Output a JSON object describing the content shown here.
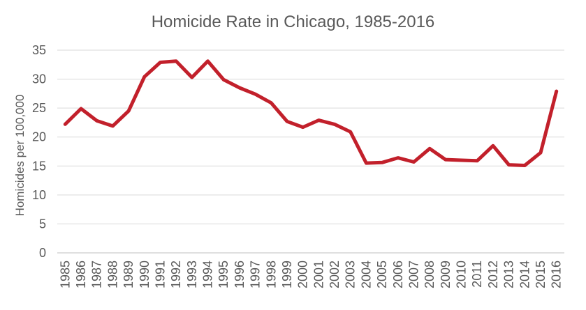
{
  "chart_data": {
    "type": "line",
    "title": "Homicide Rate in Chicago, 1985-2016",
    "ylabel": "Homicides per 100,000",
    "xlabel": "",
    "categories": [
      1985,
      1986,
      1987,
      1988,
      1989,
      1990,
      1991,
      1992,
      1993,
      1994,
      1995,
      1996,
      1997,
      1998,
      1999,
      2000,
      2001,
      2002,
      2003,
      2004,
      2005,
      2006,
      2007,
      2008,
      2009,
      2010,
      2011,
      2012,
      2013,
      2014,
      2015,
      2016
    ],
    "series": [
      {
        "name": "Homicides per 100,000",
        "values": [
          22.2,
          24.9,
          22.8,
          21.9,
          24.5,
          30.4,
          32.9,
          33.1,
          30.3,
          33.1,
          29.9,
          28.5,
          27.4,
          25.9,
          22.7,
          21.7,
          22.9,
          22.2,
          20.9,
          15.5,
          15.6,
          16.4,
          15.7,
          18.0,
          16.1,
          16.0,
          15.9,
          18.5,
          15.2,
          15.1,
          17.3,
          27.9
        ]
      }
    ],
    "ylim": [
      0,
      35
    ],
    "ytick_step": 5,
    "yticks": [
      0,
      5,
      10,
      15,
      20,
      25,
      30,
      35
    ],
    "grid": "horizontal",
    "legend": "none",
    "colors": {
      "line": "#C2202B",
      "text": "#595959",
      "gridline": "#D9D9D9",
      "axisline": "#BFBFBF",
      "background": "#FFFFFF"
    }
  }
}
